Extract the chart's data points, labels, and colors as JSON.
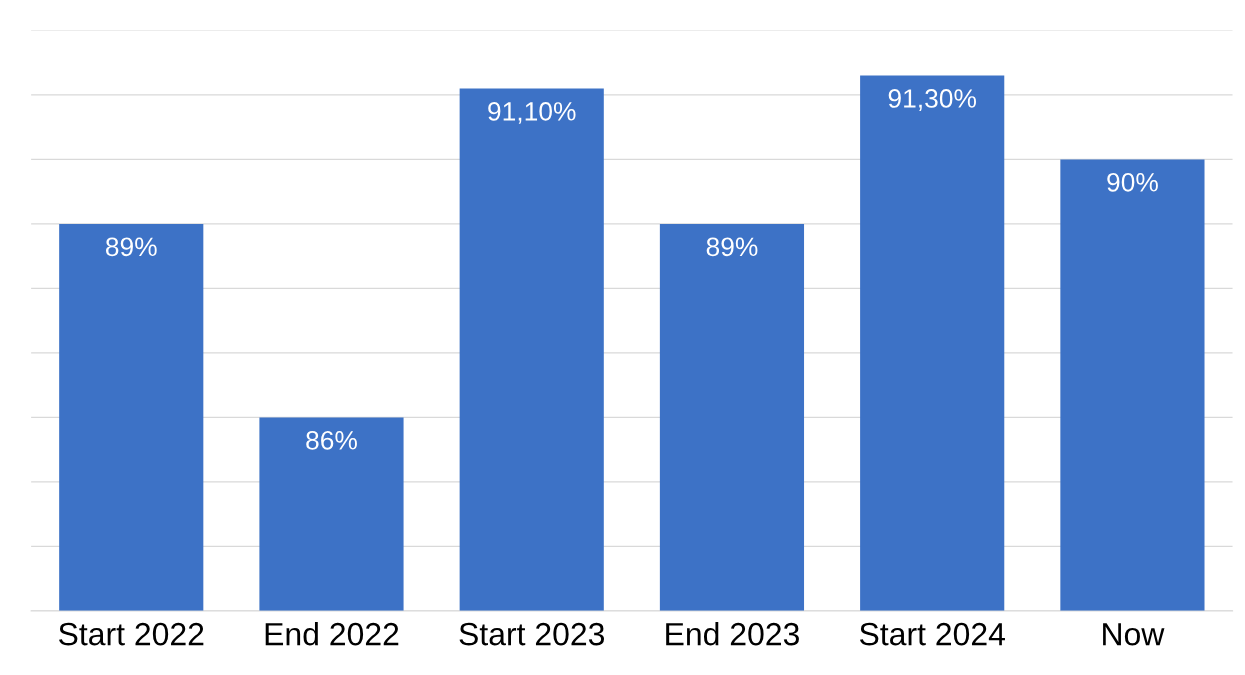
{
  "chart_data": {
    "type": "bar",
    "categories": [
      "Start 2022",
      "End 2022",
      "Start 2023",
      "End 2023",
      "Start 2024",
      "Now"
    ],
    "values": [
      89,
      86,
      91.1,
      89,
      91.3,
      90
    ],
    "value_labels": [
      "89%",
      "86%",
      "91,10%",
      "89%",
      "91,30%",
      "90%"
    ],
    "color": "#3d72c6",
    "ylim": [
      83,
      92
    ],
    "yticks": [
      {
        "value": 83,
        "label": null
      },
      {
        "value": 84,
        "label": null
      },
      {
        "value": 85,
        "label": null
      },
      {
        "value": 86,
        "label": null
      },
      {
        "value": 87,
        "label": null
      },
      {
        "value": 88,
        "label": null
      },
      {
        "value": 89,
        "label": null
      },
      {
        "value": 90,
        "label": null
      },
      {
        "value": 91,
        "label": null
      },
      {
        "value": 92,
        "label": null
      }
    ],
    "grid": "y",
    "tick_labels": "x"
  }
}
